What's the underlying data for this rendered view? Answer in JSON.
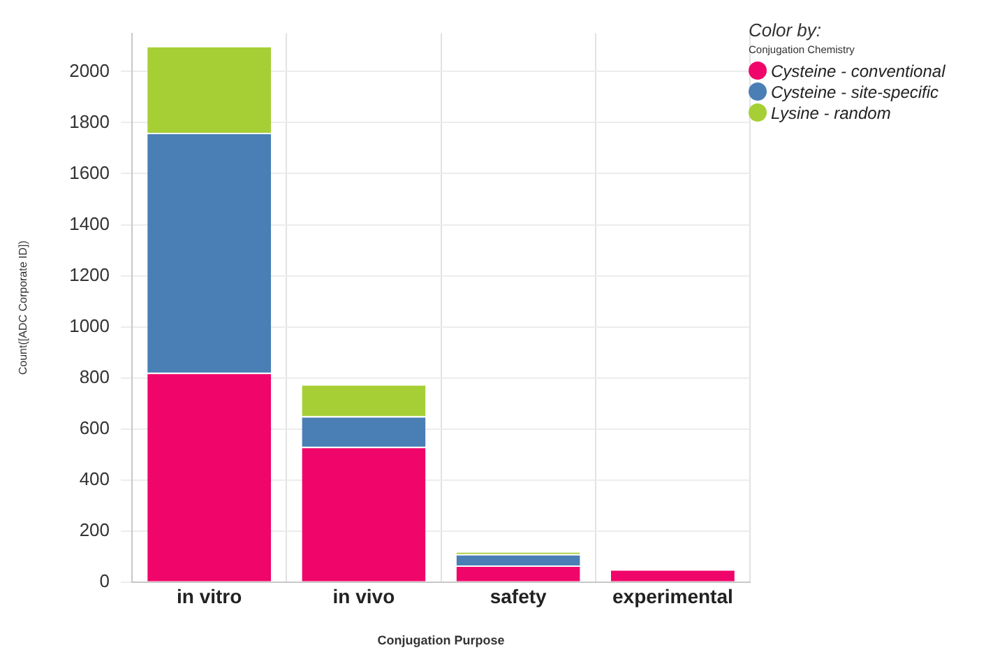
{
  "chart_data": {
    "type": "bar",
    "stacked": true,
    "categories": [
      "in vitro",
      "in vivo",
      "safety",
      "experimental"
    ],
    "series": [
      {
        "name": "Cysteine - conventional",
        "color": "#f0066a",
        "values": [
          820,
          530,
          65,
          50
        ]
      },
      {
        "name": "Cysteine - site-specific",
        "color": "#4a7fb5",
        "values": [
          940,
          120,
          45,
          0
        ]
      },
      {
        "name": "Lysine - random",
        "color": "#a6cf36",
        "values": [
          340,
          125,
          10,
          0
        ]
      }
    ],
    "ylim": [
      0,
      2150
    ],
    "yticks": [
      0,
      200,
      400,
      600,
      800,
      1000,
      1200,
      1400,
      1600,
      1800,
      2000
    ],
    "xlabel": "Conjugation Purpose",
    "ylabel": "Count([ADC Corporate ID])",
    "legend_title": "Color by:",
    "annotations": [
      "Conjugation Chemistry"
    ],
    "grid": true,
    "legend": "top right"
  }
}
